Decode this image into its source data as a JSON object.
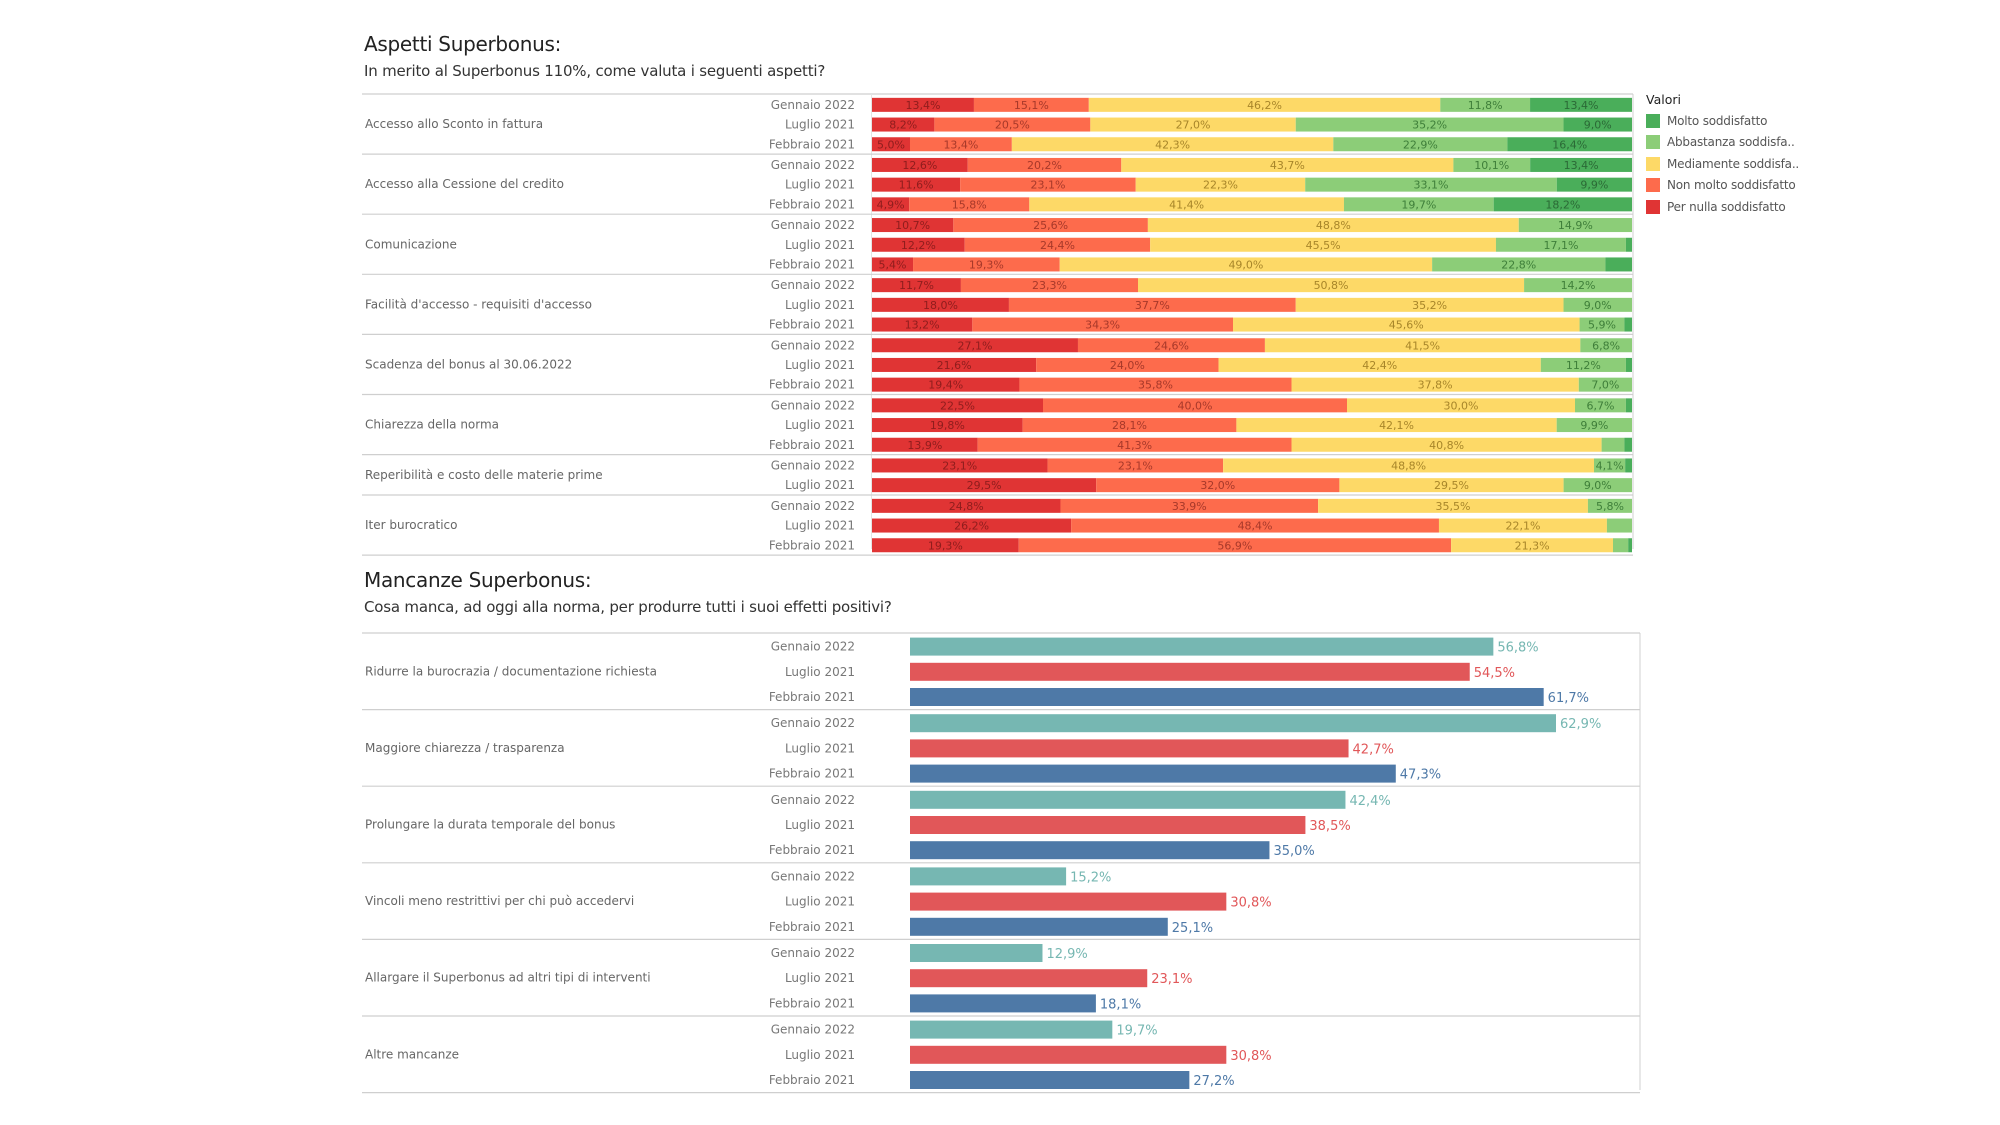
{
  "section1": {
    "title": "Aspetti Superbonus:",
    "subtitle": "In merito al Superbonus 110%, come valuta i seguenti aspetti?"
  },
  "section2": {
    "title": "Mancanze Superbonus:",
    "subtitle": "Cosa manca, ad oggi alla norma, per produrre tutti i suoi effetti positivi?"
  },
  "legend": {
    "title": "Valori",
    "items": [
      {
        "label": "Molto soddisfatto",
        "color": "#4aae5a"
      },
      {
        "label": "Abbastanza soddisfa..",
        "color": "#8ccd78"
      },
      {
        "label": "Mediamente soddisfa..",
        "color": "#fdd967"
      },
      {
        "label": "Non molto soddisfatto",
        "color": "#fd6b4c"
      },
      {
        "label": "Per nulla soddisfatto",
        "color": "#e03434"
      }
    ]
  },
  "chart_data": [
    {
      "type": "bar",
      "orientation": "horizontal",
      "stacked": true,
      "normalized": true,
      "title": "Aspetti Superbonus:",
      "subtitle": "In merito al Superbonus 110%, come valuta i seguenti aspetti?",
      "legend_title": "Valori",
      "legend_position": "right",
      "series_names": [
        "Per nulla soddisfatto",
        "Non molto soddisfatto",
        "Mediamente soddisfatto",
        "Abbastanza soddisfatto",
        "Molto soddisfatto"
      ],
      "series_colors": [
        "#e03434",
        "#fd6b4c",
        "#fdd967",
        "#8ccd78",
        "#4aae5a"
      ],
      "label_colors": [
        "#8f1d1d",
        "#a8392a",
        "#a8862a",
        "#3f7f3a",
        "#2b6a36"
      ],
      "groups": [
        {
          "category": "Accesso allo Sconto in fattura",
          "rows": [
            {
              "period": "Gennaio 2022",
              "values": [
                13.4,
                15.1,
                46.2,
                11.8,
                13.4
              ],
              "labels": [
                "13,4%",
                "15,1%",
                "46,2%",
                "11,8%",
                "13,4%"
              ]
            },
            {
              "period": "Luglio 2021",
              "values": [
                8.2,
                20.5,
                27.0,
                35.2,
                9.0
              ],
              "labels": [
                "8,2%",
                "20,5%",
                "27,0%",
                "35,2%",
                "9,0%"
              ]
            },
            {
              "period": "Febbraio 2021",
              "values": [
                5.0,
                13.4,
                42.3,
                22.9,
                16.4
              ],
              "labels": [
                "5,0%",
                "13,4%",
                "42,3%",
                "22,9%",
                "16,4%"
              ]
            }
          ]
        },
        {
          "category": "Accesso alla Cessione del credito",
          "rows": [
            {
              "period": "Gennaio 2022",
              "values": [
                12.6,
                20.2,
                43.7,
                10.1,
                13.4
              ],
              "labels": [
                "12,6%",
                "20,2%",
                "43,7%",
                "10,1%",
                "13,4%"
              ]
            },
            {
              "period": "Luglio 2021",
              "values": [
                11.6,
                23.1,
                22.3,
                33.1,
                9.9
              ],
              "labels": [
                "11,6%",
                "23,1%",
                "22,3%",
                "33,1%",
                "9,9%"
              ]
            },
            {
              "period": "Febbraio 2021",
              "values": [
                4.9,
                15.8,
                41.4,
                19.7,
                18.2
              ],
              "labels": [
                "4,9%",
                "15,8%",
                "41,4%",
                "19,7%",
                "18,2%"
              ]
            }
          ]
        },
        {
          "category": "Comunicazione",
          "rows": [
            {
              "period": "Gennaio 2022",
              "values": [
                10.7,
                25.6,
                48.8,
                14.9,
                0
              ],
              "labels": [
                "10,7%",
                "25,6%",
                "48,8%",
                "14,9%",
                ""
              ]
            },
            {
              "period": "Luglio 2021",
              "values": [
                12.2,
                24.4,
                45.5,
                17.1,
                0.8
              ],
              "labels": [
                "12,2%",
                "24,4%",
                "45,5%",
                "17,1%",
                ""
              ]
            },
            {
              "period": "Febbraio 2021",
              "values": [
                5.4,
                19.3,
                49.0,
                22.8,
                3.5
              ],
              "labels": [
                "5,4%",
                "19,3%",
                "49,0%",
                "22,8%",
                ""
              ]
            }
          ]
        },
        {
          "category": "Facilità d'accesso - requisiti d'accesso",
          "rows": [
            {
              "period": "Gennaio 2022",
              "values": [
                11.7,
                23.3,
                50.8,
                14.2,
                0
              ],
              "labels": [
                "11,7%",
                "23,3%",
                "50,8%",
                "14,2%",
                ""
              ]
            },
            {
              "period": "Luglio 2021",
              "values": [
                18.0,
                37.7,
                35.2,
                9.0,
                0
              ],
              "labels": [
                "18,0%",
                "37,7%",
                "35,2%",
                "9,0%",
                ""
              ]
            },
            {
              "period": "Febbraio 2021",
              "values": [
                13.2,
                34.3,
                45.6,
                5.9,
                1.0
              ],
              "labels": [
                "13,2%",
                "34,3%",
                "45,6%",
                "5,9%",
                ""
              ]
            }
          ]
        },
        {
          "category": "Scadenza del bonus al 30.06.2022",
          "rows": [
            {
              "period": "Gennaio 2022",
              "values": [
                27.1,
                24.6,
                41.5,
                6.8,
                0
              ],
              "labels": [
                "27,1%",
                "24,6%",
                "41,5%",
                "6,8%",
                ""
              ]
            },
            {
              "period": "Luglio 2021",
              "values": [
                21.6,
                24.0,
                42.4,
                11.2,
                0.8
              ],
              "labels": [
                "21,6%",
                "24,0%",
                "42,4%",
                "11,2%",
                ""
              ]
            },
            {
              "period": "Febbraio 2021",
              "values": [
                19.4,
                35.8,
                37.8,
                7.0,
                0
              ],
              "labels": [
                "19,4%",
                "35,8%",
                "37,8%",
                "7,0%",
                ""
              ]
            }
          ]
        },
        {
          "category": "Chiarezza della norma",
          "rows": [
            {
              "period": "Gennaio 2022",
              "values": [
                22.5,
                40.0,
                30.0,
                6.7,
                0.8
              ],
              "labels": [
                "22,5%",
                "40,0%",
                "30,0%",
                "6,7%",
                ""
              ]
            },
            {
              "period": "Luglio 2021",
              "values": [
                19.8,
                28.1,
                42.1,
                9.9,
                0
              ],
              "labels": [
                "19,8%",
                "28,1%",
                "42,1%",
                "9,9%",
                ""
              ]
            },
            {
              "period": "Febbraio 2021",
              "values": [
                13.9,
                41.3,
                40.8,
                3.0,
                1.0
              ],
              "labels": [
                "13,9%",
                "41,3%",
                "40,8%",
                "",
                ""
              ]
            }
          ]
        },
        {
          "category": "Reperibilità e costo delle materie prime",
          "rows": [
            {
              "period": "Gennaio 2022",
              "values": [
                23.1,
                23.1,
                48.8,
                4.1,
                0.9
              ],
              "labels": [
                "23,1%",
                "23,1%",
                "48,8%",
                "4,1%",
                ""
              ]
            },
            {
              "period": "Luglio 2021",
              "values": [
                29.5,
                32.0,
                29.5,
                9.0,
                0
              ],
              "labels": [
                "29,5%",
                "32,0%",
                "29,5%",
                "9,0%",
                ""
              ]
            }
          ]
        },
        {
          "category": "Iter burocratico",
          "rows": [
            {
              "period": "Gennaio 2022",
              "values": [
                24.8,
                33.9,
                35.5,
                5.8,
                0
              ],
              "labels": [
                "24,8%",
                "33,9%",
                "35,5%",
                "5,8%",
                ""
              ]
            },
            {
              "period": "Luglio 2021",
              "values": [
                26.2,
                48.4,
                22.1,
                3.3,
                0
              ],
              "labels": [
                "26,2%",
                "48,4%",
                "22,1%",
                "",
                ""
              ]
            },
            {
              "period": "Febbraio 2021",
              "values": [
                19.3,
                56.9,
                21.3,
                2.0,
                0.5
              ],
              "labels": [
                "19,3%",
                "56,9%",
                "21,3%",
                "",
                ""
              ]
            }
          ]
        }
      ]
    },
    {
      "type": "bar",
      "orientation": "horizontal",
      "stacked": false,
      "title": "Mancanze Superbonus:",
      "subtitle": "Cosa manca, ad oggi alla norma, per produrre tutti i suoi effetti positivi?",
      "xlim": [
        0,
        70
      ],
      "period_colors": {
        "Gennaio 2022": "#76b7b2",
        "Luglio 2021": "#e15759",
        "Febbraio 2021": "#4e79a7"
      },
      "groups": [
        {
          "category": "Ridurre la burocrazia / documentazione richiesta",
          "rows": [
            {
              "period": "Gennaio 2022",
              "value": 56.8,
              "label": "56,8%"
            },
            {
              "period": "Luglio 2021",
              "value": 54.5,
              "label": "54,5%"
            },
            {
              "period": "Febbraio 2021",
              "value": 61.7,
              "label": "61,7%"
            }
          ]
        },
        {
          "category": "Maggiore chiarezza / trasparenza",
          "rows": [
            {
              "period": "Gennaio 2022",
              "value": 62.9,
              "label": "62,9%"
            },
            {
              "period": "Luglio 2021",
              "value": 42.7,
              "label": "42,7%"
            },
            {
              "period": "Febbraio 2021",
              "value": 47.3,
              "label": "47,3%"
            }
          ]
        },
        {
          "category": "Prolungare la durata temporale del bonus",
          "rows": [
            {
              "period": "Gennaio 2022",
              "value": 42.4,
              "label": "42,4%"
            },
            {
              "period": "Luglio 2021",
              "value": 38.5,
              "label": "38,5%"
            },
            {
              "period": "Febbraio 2021",
              "value": 35.0,
              "label": "35,0%"
            }
          ]
        },
        {
          "category": "Vincoli meno restrittivi per chi può accedervi",
          "rows": [
            {
              "period": "Gennaio 2022",
              "value": 15.2,
              "label": "15,2%"
            },
            {
              "period": "Luglio 2021",
              "value": 30.8,
              "label": "30,8%"
            },
            {
              "period": "Febbraio 2021",
              "value": 25.1,
              "label": "25,1%"
            }
          ]
        },
        {
          "category": "Allargare il Superbonus ad altri tipi di interventi",
          "rows": [
            {
              "period": "Gennaio 2022",
              "value": 12.9,
              "label": "12,9%"
            },
            {
              "period": "Luglio 2021",
              "value": 23.1,
              "label": "23,1%"
            },
            {
              "period": "Febbraio 2021",
              "value": 18.1,
              "label": "18,1%"
            }
          ]
        },
        {
          "category": "Altre mancanze",
          "rows": [
            {
              "period": "Gennaio 2022",
              "value": 19.7,
              "label": "19,7%"
            },
            {
              "period": "Luglio 2021",
              "value": 30.8,
              "label": "30,8%"
            },
            {
              "period": "Febbraio 2021",
              "value": 27.2,
              "label": "27,2%"
            }
          ]
        }
      ]
    }
  ]
}
